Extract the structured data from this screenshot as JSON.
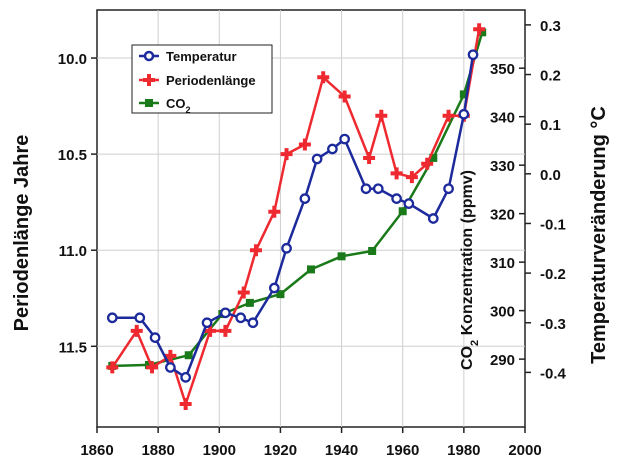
{
  "chart_data": {
    "type": "line",
    "title": "",
    "xlabel": "",
    "xlim": [
      1860,
      2000
    ],
    "x_ticks": [
      "1860",
      "1880",
      "1900",
      "1920",
      "1940",
      "1960",
      "1980",
      "2000"
    ],
    "left_axis": {
      "label": "Periodenlänge Jahre",
      "inverted": true,
      "range": [
        9.75,
        11.92
      ],
      "ticks": [
        "10.0",
        "10.5",
        "11.0",
        "11.5"
      ]
    },
    "right_outer_axis": {
      "label": "Temperaturveränderung °C",
      "range": [
        -0.51,
        0.33
      ],
      "ticks": [
        "0.3",
        "0.2",
        "0.1",
        "0.0",
        "-0.1",
        "-0.2",
        "-0.3",
        "-0.4"
      ]
    },
    "right_inner_axis": {
      "label_parts": [
        "CO",
        "2",
        " Konzentration (ppmv)"
      ],
      "range": [
        276,
        362
      ],
      "ticks": [
        "350",
        "340",
        "330",
        "320",
        "310",
        "300",
        "290"
      ]
    },
    "legend": {
      "position": "top-left",
      "entries": [
        {
          "label": "Temperatur",
          "color": "#1c2a9c",
          "marker": "circle"
        },
        {
          "label": "Periodenlänge",
          "color": "#ee2a30",
          "marker": "plus"
        },
        {
          "label_parts": [
            "CO",
            "2"
          ],
          "color": "#1a7a1a",
          "marker": "square"
        }
      ]
    },
    "series": [
      {
        "name": "Temperatur",
        "axis": "right_outer",
        "color": "#1c2a9c",
        "x": [
          1865,
          1874,
          1879,
          1884,
          1889,
          1896,
          1902,
          1907,
          1911,
          1918,
          1922,
          1928,
          1932,
          1937,
          1941,
          1948,
          1952,
          1958,
          1962,
          1970,
          1975,
          1980,
          1983
        ],
        "y": [
          -0.29,
          -0.29,
          -0.33,
          -0.39,
          -0.41,
          -0.3,
          -0.28,
          -0.29,
          -0.3,
          -0.23,
          -0.15,
          -0.05,
          0.03,
          0.05,
          0.07,
          -0.03,
          -0.03,
          -0.05,
          -0.06,
          -0.09,
          -0.03,
          0.12,
          0.24
        ]
      },
      {
        "name": "Periodenlänge",
        "axis": "left",
        "color": "#ee2a30",
        "x": [
          1865,
          1873,
          1878,
          1884,
          1889,
          1897,
          1902,
          1908,
          1912,
          1918,
          1922,
          1928,
          1934,
          1941,
          1949,
          1953,
          1958,
          1963,
          1968,
          1975,
          1980,
          1985
        ],
        "y": [
          11.61,
          11.42,
          11.61,
          11.55,
          11.8,
          11.42,
          11.42,
          11.22,
          11.0,
          10.8,
          10.5,
          10.45,
          10.1,
          10.2,
          10.52,
          10.3,
          10.6,
          10.62,
          10.55,
          10.3,
          10.3,
          9.85
        ]
      },
      {
        "name": "CO2",
        "axis": "right_inner",
        "color": "#1a7a1a",
        "x": [
          1865,
          1877,
          1890,
          1901,
          1910,
          1920,
          1930,
          1940,
          1950,
          1960,
          1970,
          1980,
          1986
        ],
        "y": [
          288.6,
          288.8,
          290.8,
          299.3,
          301.6,
          303.4,
          308.5,
          311.2,
          312.3,
          320.5,
          331.5,
          344.6,
          357.4
        ]
      }
    ]
  }
}
